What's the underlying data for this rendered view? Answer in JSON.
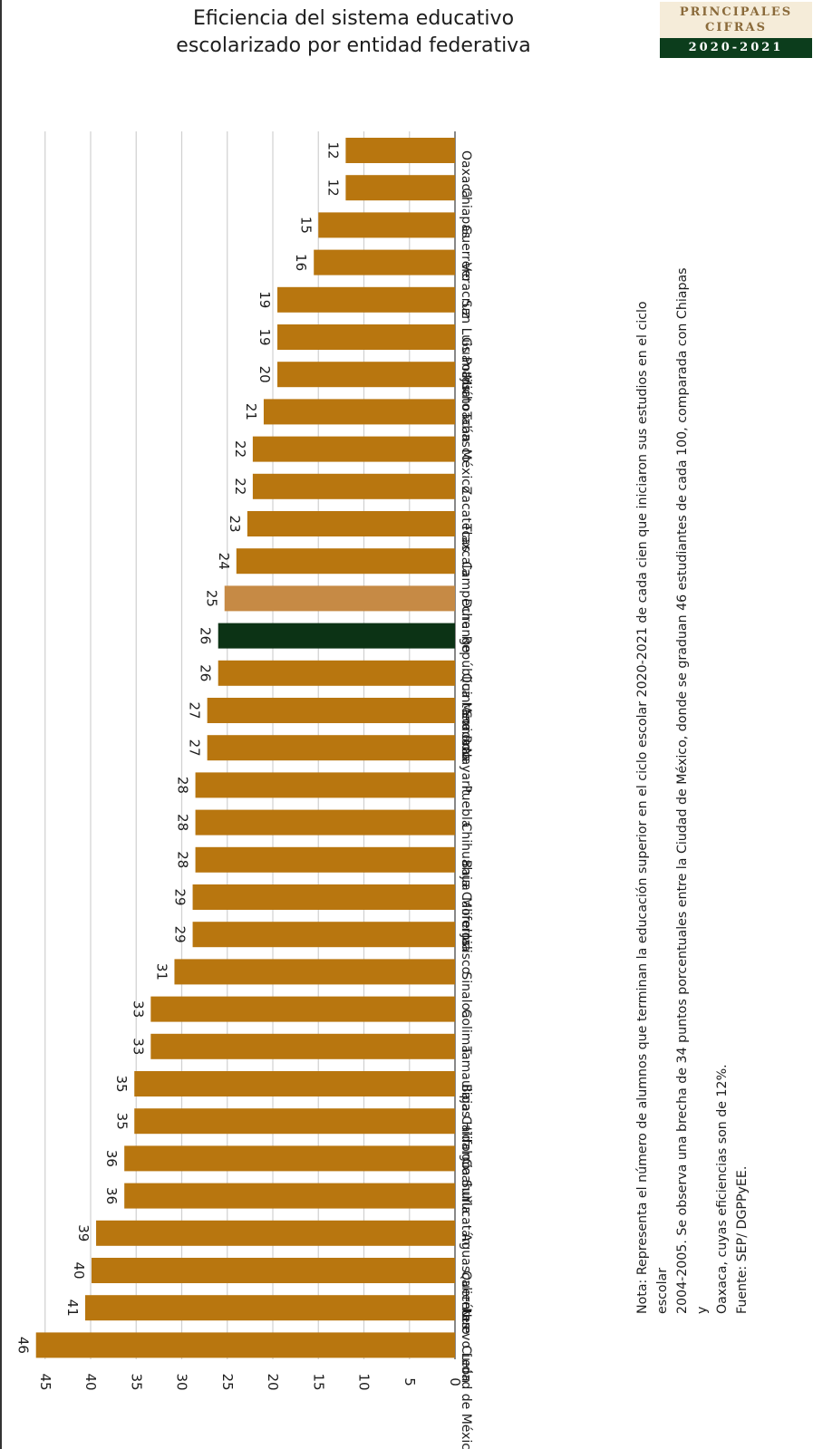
{
  "header": {
    "title_line1": "Eficiencia del sistema educativo",
    "title_line2": "escolarizado por entidad federativa",
    "badge_line1": "PRINCIPALES",
    "badge_line2": "CIFRAS",
    "badge_years": "2020-2021"
  },
  "note": {
    "line1": "Nota: Representa el número de alumnos que terminan la educación superior en el ciclo escolar 2020-2021 de cada cien que iniciaron sus estudios en el ciclo escolar",
    "line2": "2004-2005. Se observa una brecha de 34 puntos porcentuales entre la Ciudad de México, donde se graduan 46 estudiantes de cada 100, comparada con Chiapas y",
    "line3": "Oaxaca, cuyas eficiencias son de 12%.",
    "source": "Fuente: SEP/ DGPPyEE."
  },
  "colors": {
    "bar": "#b8760f",
    "bar_highlight": "#c68a45",
    "national": "#0c3315",
    "grid": "#d0d0d0"
  },
  "chart_data": {
    "type": "bar",
    "orientation": "horizontal",
    "categories": [
      "Oaxaca",
      "Chiapas",
      "Guerrero",
      "Veracruz",
      "San Luis Potosí",
      "Guanajuato",
      "Michoacán",
      "Tabasco",
      "México",
      "Zacatecas",
      "Tlaxcala",
      "Campeche",
      "Durango",
      "República Mexicana",
      "Quintana Roo",
      "Sonora",
      "Nayarit",
      "Puebla",
      "Chihuahua",
      "Baja California",
      "Morelos",
      "Jalisco",
      "Sinaloa",
      "Colima",
      "Tamaulipas",
      "Baja California Sur",
      "Hidalgo",
      "Coahuila",
      "Yucatán",
      "Aguascalientes",
      "Querétaro",
      "Nuevo León",
      "Ciudad de México"
    ],
    "values": [
      12,
      12,
      15,
      16,
      19,
      19,
      20,
      21,
      22,
      22,
      23,
      24,
      25,
      26,
      26,
      27,
      27,
      28,
      28,
      28,
      29,
      29,
      31,
      33,
      33,
      35,
      35,
      36,
      36,
      39,
      40,
      41,
      46
    ],
    "precise_values": [
      12,
      12,
      15,
      15.5,
      19.5,
      19.5,
      19.5,
      21,
      22.2,
      22.2,
      22.8,
      24,
      25.3,
      26,
      26,
      27.2,
      27.2,
      28.5,
      28.5,
      28.5,
      28.8,
      28.8,
      30.8,
      33.4,
      33.4,
      35.2,
      35.2,
      36.3,
      36.3,
      39.4,
      39.9,
      40.6,
      46
    ],
    "tick_values": [
      0,
      5,
      10,
      15,
      20,
      25,
      30,
      35,
      40,
      45
    ],
    "xlim": [
      0,
      46
    ],
    "grid": true
  }
}
